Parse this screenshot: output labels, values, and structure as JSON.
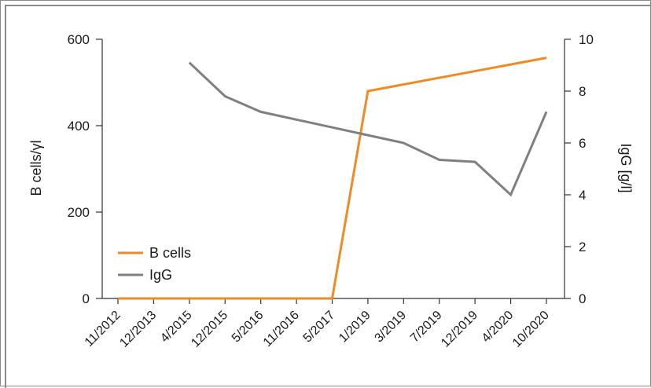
{
  "chart_data": {
    "type": "line",
    "title": "",
    "categories": [
      "11/2012",
      "12/2013",
      "4/2015",
      "12/2015",
      "5/2016",
      "11/2016",
      "5/2017",
      "1/2019",
      "3/2019",
      "7/2019",
      "12/2019",
      "4/2020",
      "10/2020"
    ],
    "series": [
      {
        "name": "B cells",
        "axis": "left",
        "color": "#f08a24",
        "values": [
          0,
          0,
          0,
          0,
          0,
          0,
          0,
          480,
          null,
          null,
          null,
          null,
          557
        ]
      },
      {
        "name": "IgG",
        "axis": "right",
        "color": "#808080",
        "values": [
          null,
          null,
          9.1,
          7.8,
          7.2,
          6.9,
          6.6,
          6.3,
          6.0,
          5.35,
          5.27,
          4.0,
          7.2
        ]
      }
    ],
    "ylabel_left": "B cells/γl",
    "ylabel_right": "IgG [g/l]",
    "ylim_left": [
      0,
      600
    ],
    "yticks_left": [
      "0",
      "200",
      "400",
      "600"
    ],
    "ylim_right": [
      0,
      10
    ],
    "yticks_right": [
      "0",
      "2",
      "4",
      "6",
      "8",
      "10"
    ],
    "legend_position": "lower-left",
    "grid": false
  }
}
